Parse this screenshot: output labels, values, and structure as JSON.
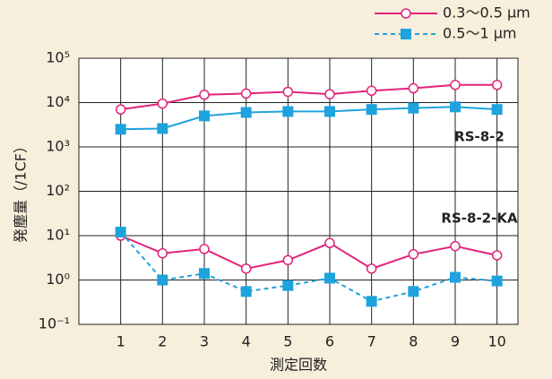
{
  "chart_data": {
    "type": "line",
    "log_y": true,
    "grid": true,
    "xlabel": "測定回数",
    "ylabel": "発塵量（/1CF）",
    "x": [
      1,
      2,
      3,
      4,
      5,
      6,
      7,
      8,
      9,
      10
    ],
    "xlim": [
      0,
      10.5
    ],
    "xticks": [
      1,
      2,
      3,
      4,
      5,
      6,
      7,
      8,
      9,
      10
    ],
    "ylim": [
      0.1,
      100000
    ],
    "yticks": [
      {
        "value": 0.1,
        "label": "10⁻¹"
      },
      {
        "value": 1,
        "label": "10⁰"
      },
      {
        "value": 10,
        "label": "10¹"
      },
      {
        "value": 100,
        "label": "10²"
      },
      {
        "value": 1000,
        "label": "10³"
      },
      {
        "value": 10000,
        "label": "10⁴"
      },
      {
        "value": 100000,
        "label": "10⁵"
      }
    ],
    "legend": "top-right",
    "series": [
      {
        "name": "0.3～0.5 μm",
        "color": "#e0247c",
        "marker": "circle",
        "dashed": false,
        "groups": [
          {
            "label": "RS-8-2",
            "dashed": false,
            "values": [
              7000,
              9500,
              15000,
              16000,
              17500,
              15500,
              18500,
              21000,
              25000,
              25000
            ]
          },
          {
            "label": "RS-8-2-KA",
            "dashed": false,
            "values": [
              10,
              4,
              5,
              1.8,
              2.8,
              6.8,
              1.8,
              3.8,
              5.8,
              3.6
            ]
          }
        ]
      },
      {
        "name": "0.5～1 μm",
        "color": "#1ea3dd",
        "marker": "square",
        "dashed": true,
        "groups": [
          {
            "dashed": false,
            "values": [
              2500,
              2600,
              5000,
              6000,
              6300,
              6300,
              7000,
              7500,
              8000,
              7000
            ]
          },
          {
            "dashed": true,
            "values": [
              12,
              1.0,
              1.4,
              0.55,
              0.75,
              1.1,
              0.33,
              0.55,
              1.15,
              0.95
            ]
          }
        ]
      }
    ]
  }
}
